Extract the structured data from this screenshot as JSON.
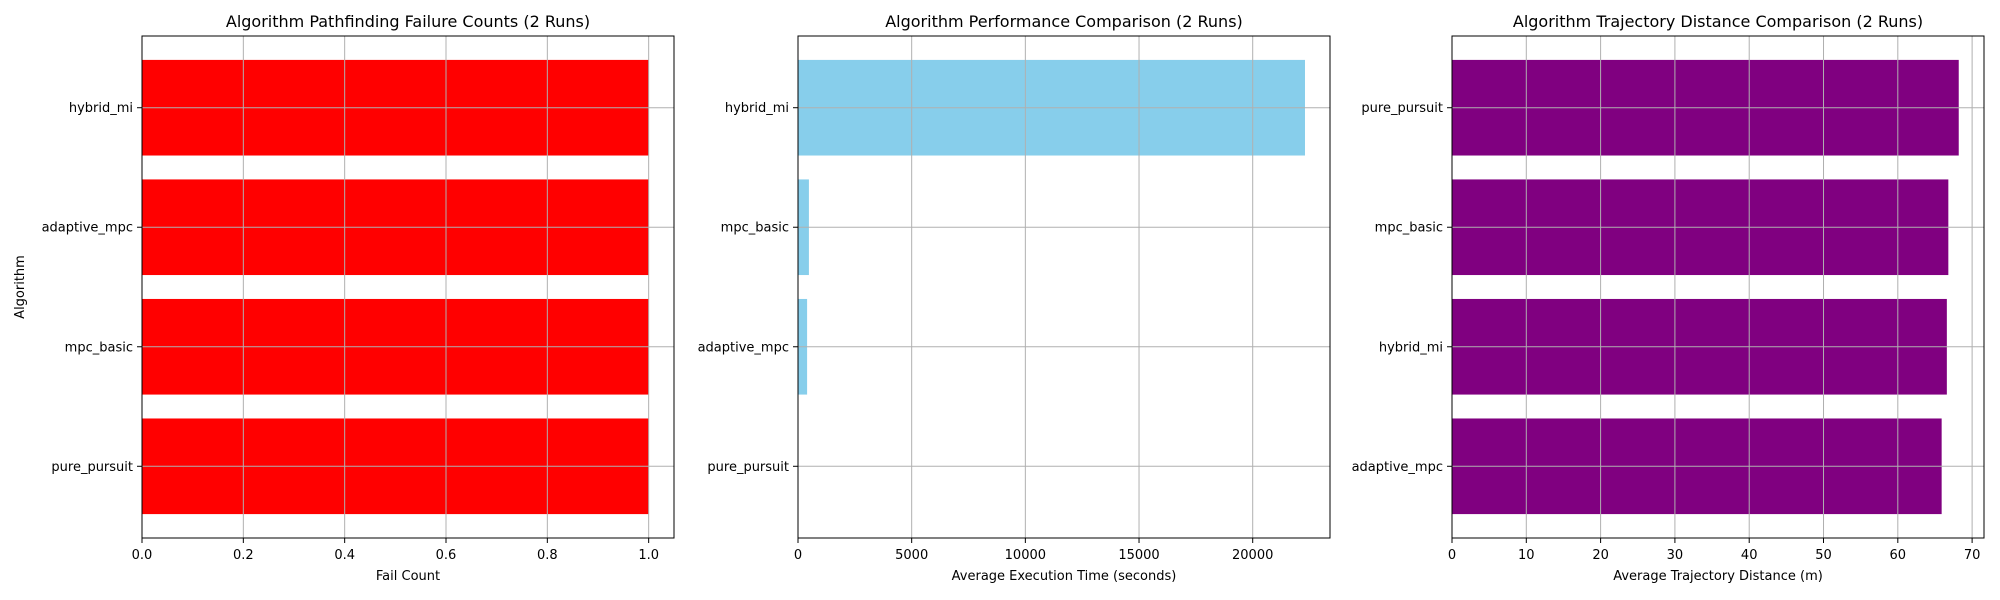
{
  "chart_data": [
    {
      "type": "bar",
      "orientation": "horizontal",
      "title": "Algorithm Pathfinding Failure Counts (2 Runs)",
      "xlabel": "Fail Count",
      "ylabel": "Algorithm",
      "categories": [
        "pure_pursuit",
        "mpc_basic",
        "adaptive_mpc",
        "hybrid_mi"
      ],
      "values": [
        1,
        1,
        1,
        1
      ],
      "xlim": [
        0,
        1.05
      ],
      "xticks": [
        0.0,
        0.2,
        0.4,
        0.6,
        0.8,
        1.0
      ],
      "xtick_labels": [
        "0.0",
        "0.2",
        "0.4",
        "0.6",
        "0.8",
        "1.0"
      ],
      "color": "#ff0000",
      "grid": true
    },
    {
      "type": "bar",
      "orientation": "horizontal",
      "title": "Algorithm Performance Comparison (2 Runs)",
      "xlabel": "Average Execution Time (seconds)",
      "ylabel": "",
      "categories": [
        "pure_pursuit",
        "adaptive_mpc",
        "mpc_basic",
        "hybrid_mi"
      ],
      "values": [
        0,
        400,
        480,
        22300
      ],
      "xlim": [
        0,
        23400
      ],
      "xticks": [
        0,
        5000,
        10000,
        15000,
        20000
      ],
      "xtick_labels": [
        "0",
        "5000",
        "10000",
        "15000",
        "20000"
      ],
      "color": "#87ceeb",
      "grid": true
    },
    {
      "type": "bar",
      "orientation": "horizontal",
      "title": "Algorithm Trajectory Distance Comparison (2 Runs)",
      "xlabel": "Average Trajectory Distance (m)",
      "ylabel": "",
      "categories": [
        "adaptive_mpc",
        "hybrid_mi",
        "mpc_basic",
        "pure_pursuit"
      ],
      "values": [
        65.9,
        66.6,
        66.8,
        68.2
      ],
      "xlim": [
        0,
        71.6
      ],
      "xticks": [
        0,
        10,
        20,
        30,
        40,
        50,
        60,
        70
      ],
      "xtick_labels": [
        "0",
        "10",
        "20",
        "30",
        "40",
        "50",
        "60",
        "70"
      ],
      "color": "#800080",
      "grid": true
    }
  ]
}
